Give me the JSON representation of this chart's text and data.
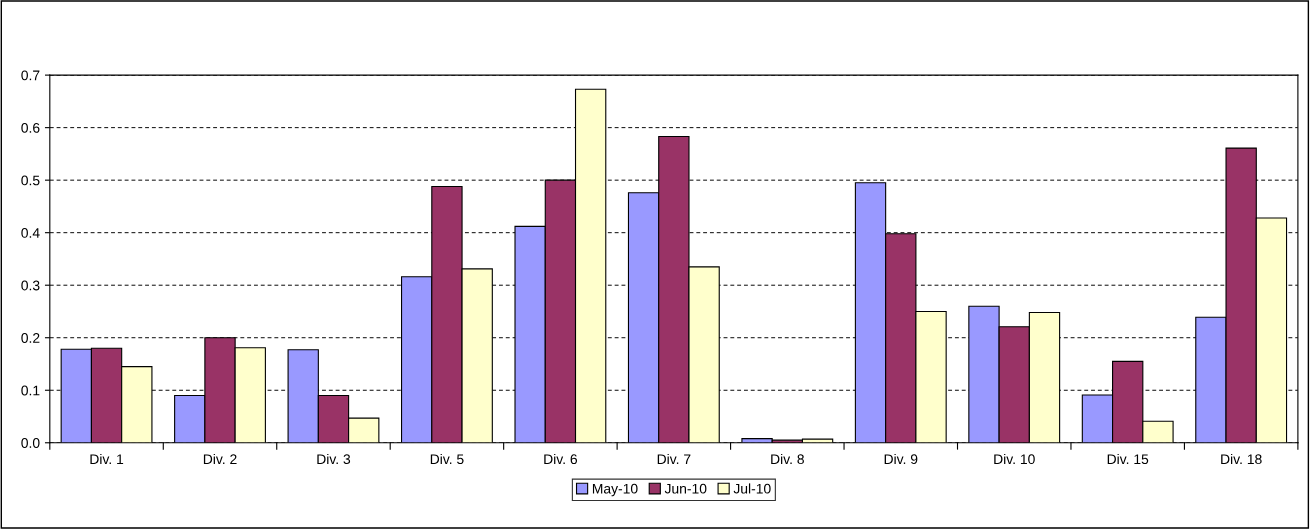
{
  "chart_data": {
    "type": "bar",
    "categories": [
      "Div. 1",
      "Div. 2",
      "Div. 3",
      "Div. 5",
      "Div. 6",
      "Div. 7",
      "Div. 8",
      "Div. 9",
      "Div. 10",
      "Div. 15",
      "Div. 18"
    ],
    "series": [
      {
        "name": "May-10",
        "color": "#9999ff",
        "values": [
          0.178,
          0.09,
          0.177,
          0.316,
          0.412,
          0.476,
          0.008,
          0.495,
          0.26,
          0.091,
          0.239
        ]
      },
      {
        "name": "Jun-10",
        "color": "#993366",
        "values": [
          0.18,
          0.2,
          0.09,
          0.488,
          0.5,
          0.583,
          0.005,
          0.398,
          0.221,
          0.155,
          0.561
        ]
      },
      {
        "name": "Jul-10",
        "color": "#ffffcc",
        "values": [
          0.145,
          0.181,
          0.047,
          0.331,
          0.673,
          0.335,
          0.007,
          0.25,
          0.248,
          0.041,
          0.428
        ]
      }
    ],
    "ylim": [
      0,
      0.7
    ],
    "yticks": [
      {
        "value": 0,
        "label": "0.0"
      },
      0.1,
      0.2,
      0.3,
      0.4,
      0.5,
      0.6,
      0.7
    ],
    "grid": "y",
    "legend": "bottom"
  }
}
